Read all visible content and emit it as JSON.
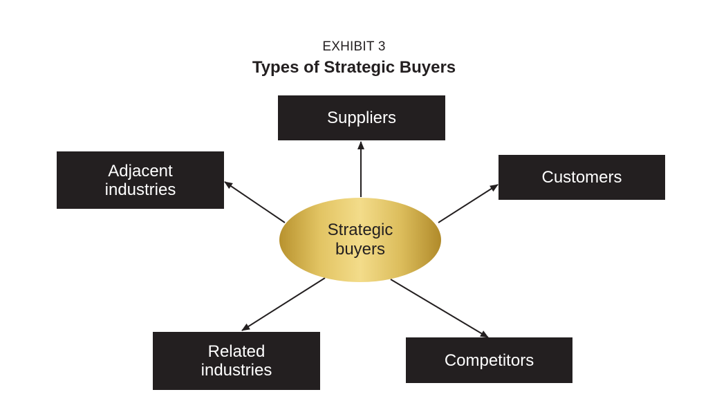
{
  "header": {
    "exhibit_label": "EXHIBIT 3",
    "title": "Types of Strategic Buyers"
  },
  "center": {
    "label": "Strategic\nbuyers"
  },
  "nodes": {
    "suppliers": "Suppliers",
    "customers": "Customers",
    "adjacent_industries": "Adjacent\nindustries",
    "related_industries": "Related\nindustries",
    "competitors": "Competitors"
  },
  "colors": {
    "box_fill": "#231f20",
    "box_text": "#ffffff",
    "ellipse_gold_light": "#f3dc8a",
    "ellipse_gold_dark": "#b8922e",
    "arrow": "#231f20"
  }
}
